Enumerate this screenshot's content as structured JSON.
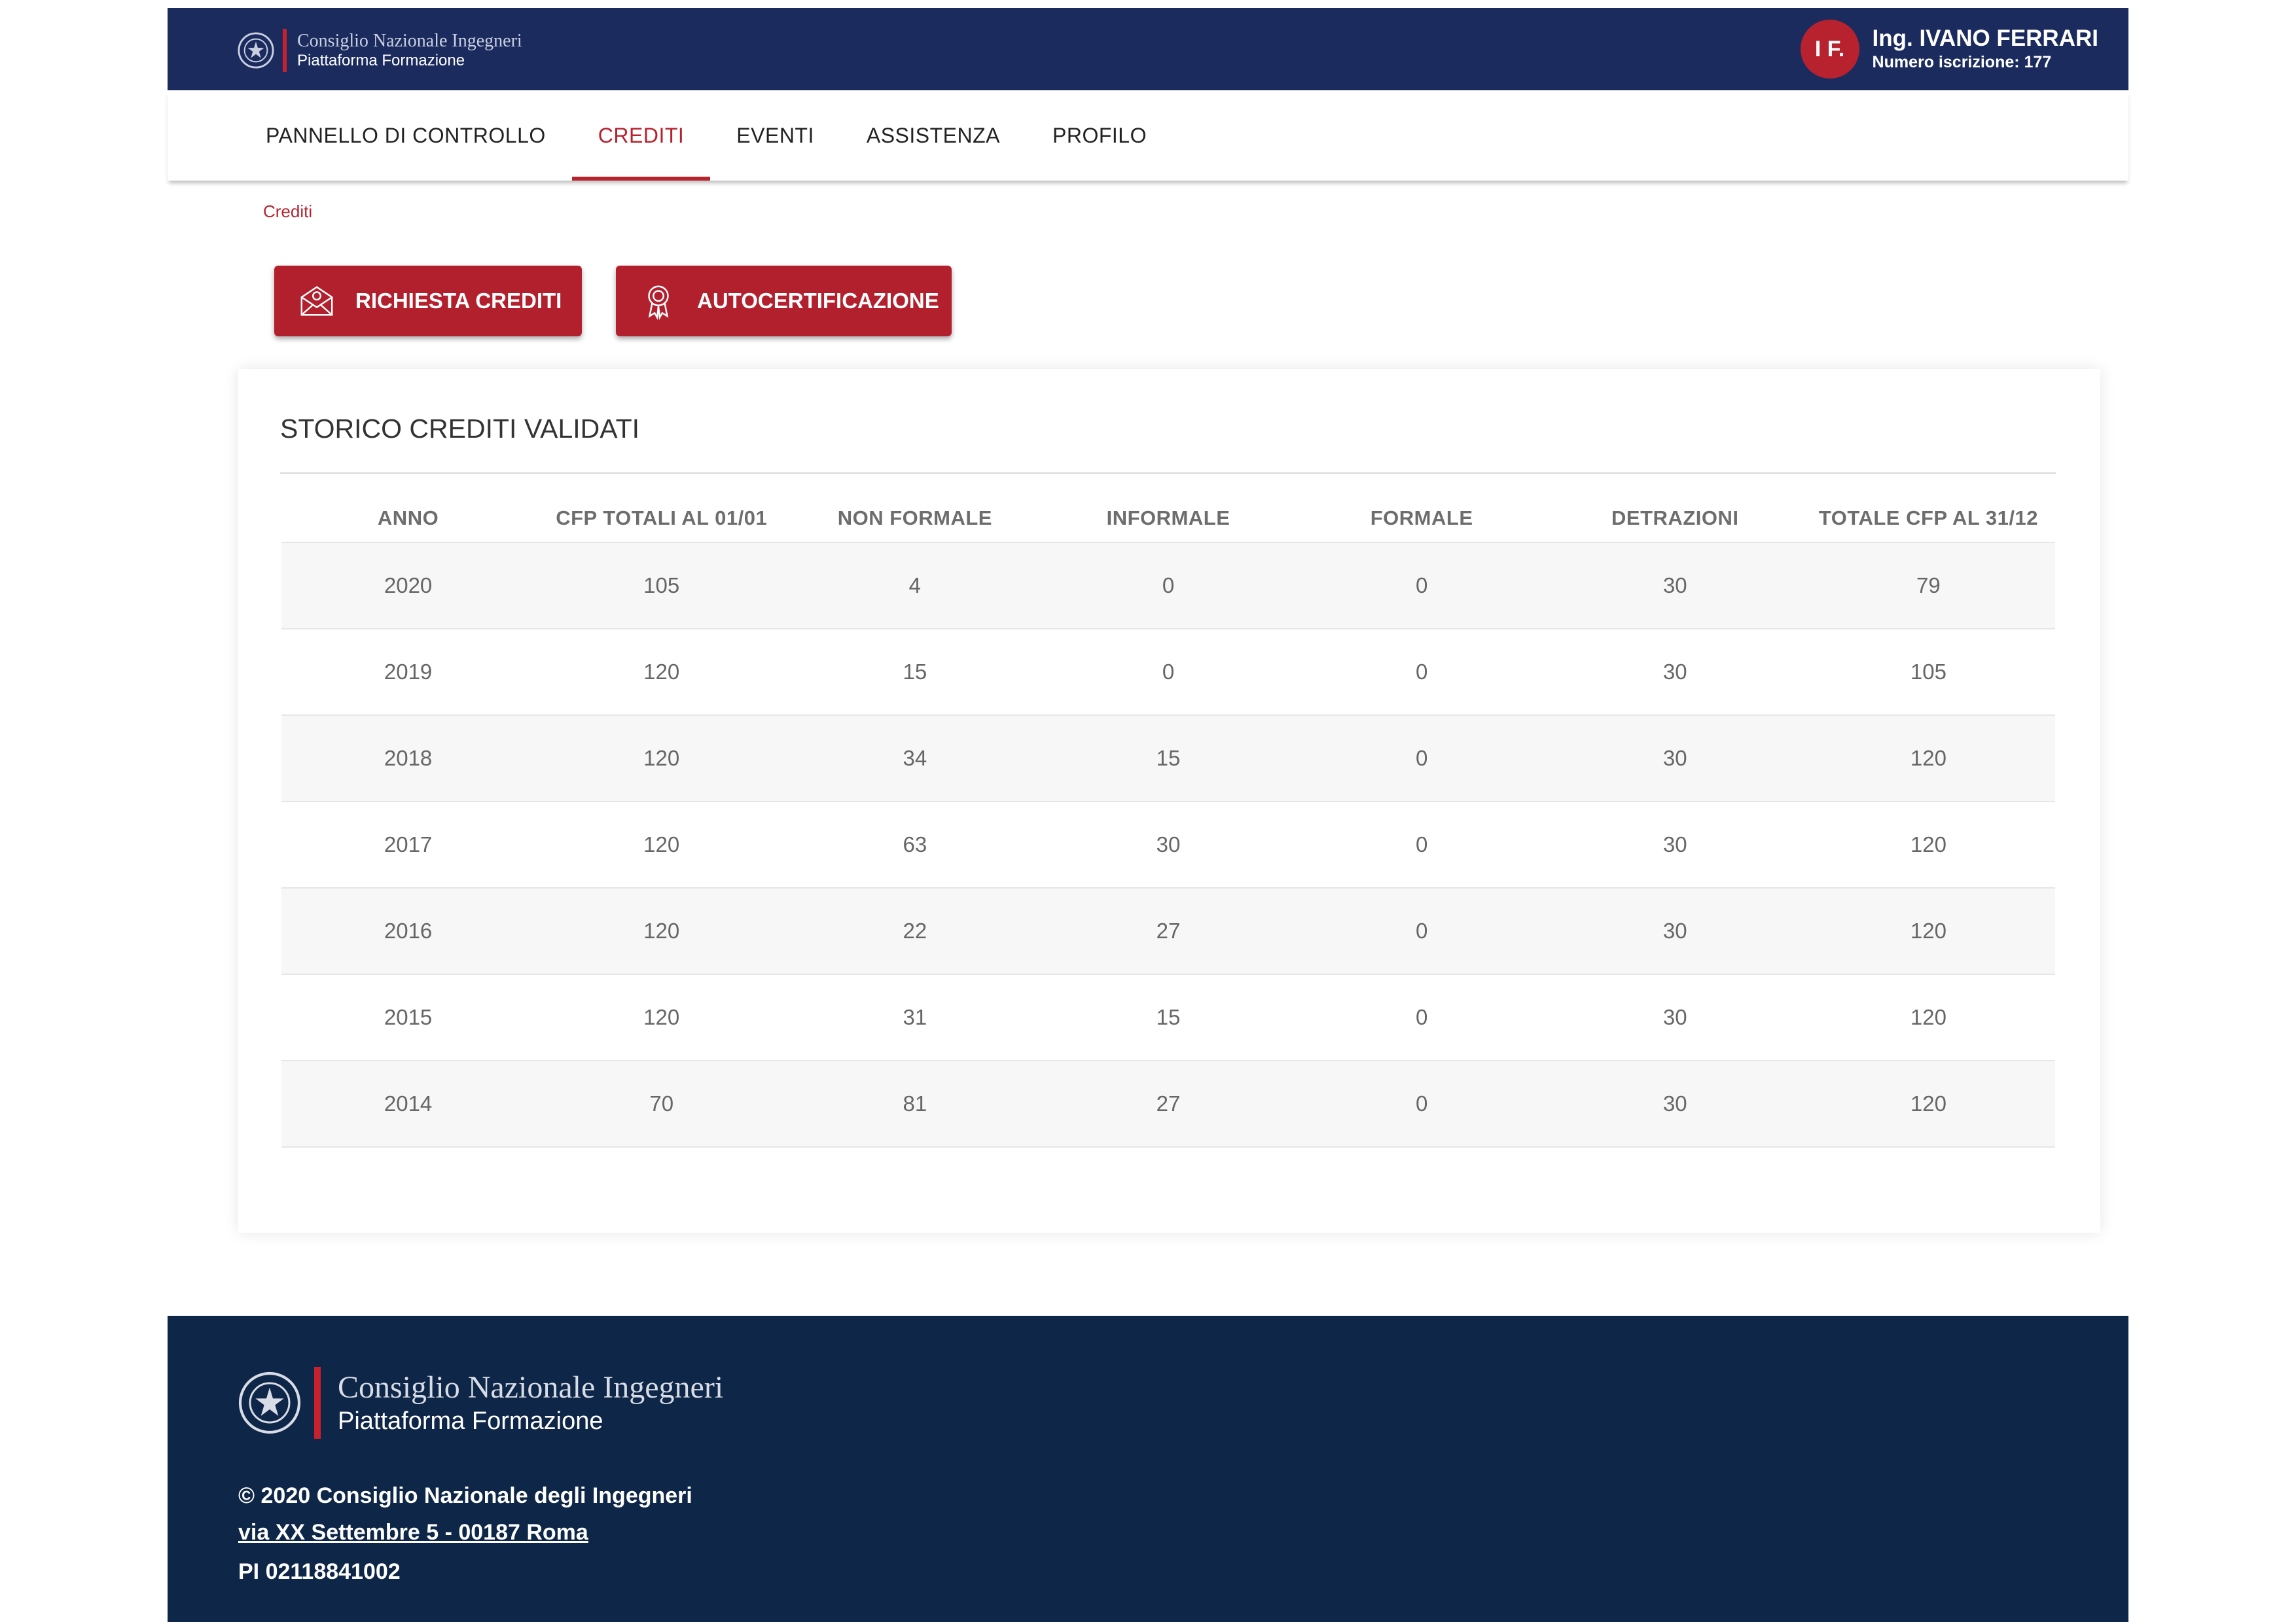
{
  "header": {
    "org_name": "Consiglio Nazionale Ingegneri",
    "platform": "Piattaforma Formazione",
    "user_initials": "I F.",
    "user_name": "Ing. IVANO FERRARI",
    "user_reg": "Numero iscrizione: 177"
  },
  "nav": {
    "items": [
      {
        "label": "PANNELLO DI CONTROLLO"
      },
      {
        "label": "CREDITI"
      },
      {
        "label": "EVENTI"
      },
      {
        "label": "ASSISTENZA"
      },
      {
        "label": "PROFILO"
      }
    ],
    "active": "CREDITI"
  },
  "breadcrumb": "Crediti",
  "actions": {
    "richiesta": "RICHIESTA CREDITI",
    "autocert": "AUTOCERTIFICAZIONE"
  },
  "table": {
    "title": "STORICO CREDITI VALIDATI",
    "columns": [
      "ANNO",
      "CFP TOTALI AL 01/01",
      "NON FORMALE",
      "INFORMALE",
      "FORMALE",
      "DETRAZIONI",
      "TOTALE CFP AL 31/12"
    ],
    "rows": [
      [
        "2020",
        "105",
        "4",
        "0",
        "0",
        "30",
        "79"
      ],
      [
        "2019",
        "120",
        "15",
        "0",
        "0",
        "30",
        "105"
      ],
      [
        "2018",
        "120",
        "34",
        "15",
        "0",
        "30",
        "120"
      ],
      [
        "2017",
        "120",
        "63",
        "30",
        "0",
        "30",
        "120"
      ],
      [
        "2016",
        "120",
        "22",
        "27",
        "0",
        "30",
        "120"
      ],
      [
        "2015",
        "120",
        "31",
        "15",
        "0",
        "30",
        "120"
      ],
      [
        "2014",
        "70",
        "81",
        "27",
        "0",
        "30",
        "120"
      ]
    ]
  },
  "footer": {
    "org_name": "Consiglio Nazionale Ingegneri",
    "platform": "Piattaforma Formazione",
    "copyright": "© 2020 Consiglio Nazionale degli Ingegneri",
    "address": "via XX Settembre 5 - 00187 Roma",
    "vat": "PI 02118841002"
  },
  "colors": {
    "header_bg": "#1b2b5e",
    "footer_bg": "#0e2647",
    "accent_red": "#b3202d"
  },
  "icons": {
    "logo": "italian-republic-emblem-icon",
    "richiesta": "envelope-icon",
    "autocert": "award-badge-icon"
  }
}
